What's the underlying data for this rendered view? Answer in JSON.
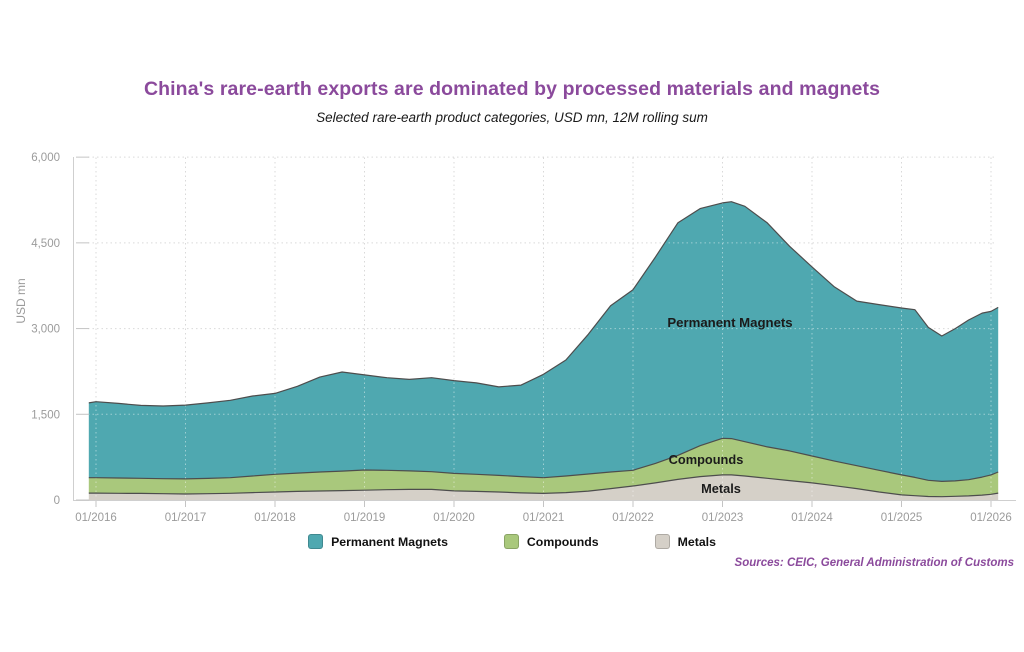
{
  "colors": {
    "title": "#8B4A9C",
    "sources": "#8B4A9C",
    "axis_text": "#9B9B9B",
    "axis_line": "#CFCFCF",
    "grid": "#D9D9D9",
    "area_stroke": "#4D4D4D"
  },
  "footer": {
    "sources": "Sources: CEIC, General Administration of Customs"
  },
  "chart_data": {
    "type": "area",
    "stacked": true,
    "title": "China's rare-earth exports are dominated by processed materials and magnets",
    "subtitle": "Selected rare-earth product categories, USD mn, 12M rolling sum",
    "xlabel": "",
    "ylabel": "USD mn",
    "ylim": [
      0,
      6000
    ],
    "grid": "dotted",
    "legend_position": "bottom",
    "y_ticks": [
      0,
      1500,
      3000,
      4500,
      6000
    ],
    "y_tick_labels": [
      "0",
      "1,500",
      "3,000",
      "4,500",
      "6,000"
    ],
    "x_ticks": [
      2016,
      2017,
      2018,
      2019,
      2020,
      2021,
      2022,
      2023,
      2024,
      2025,
      2026
    ],
    "x_tick_labels": [
      "01/2016",
      "01/2017",
      "01/2018",
      "01/2019",
      "01/2020",
      "01/2021",
      "01/2022",
      "01/2023",
      "01/2024",
      "01/2025",
      "01/2026"
    ],
    "x": [
      2015.92,
      2016.0,
      2016.25,
      2016.5,
      2016.75,
      2017.0,
      2017.25,
      2017.5,
      2017.75,
      2018.0,
      2018.25,
      2018.5,
      2018.75,
      2019.0,
      2019.25,
      2019.5,
      2019.75,
      2020.0,
      2020.25,
      2020.5,
      2020.75,
      2021.0,
      2021.25,
      2021.5,
      2021.75,
      2022.0,
      2022.25,
      2022.5,
      2022.75,
      2023.0,
      2023.1,
      2023.25,
      2023.5,
      2023.75,
      2024.0,
      2024.25,
      2024.5,
      2024.75,
      2025.0,
      2025.15,
      2025.3,
      2025.45,
      2025.6,
      2025.75,
      2025.9,
      2026.0,
      2026.08
    ],
    "series": [
      {
        "name": "Metals",
        "color": "#D5D0C8",
        "values": [
          120,
          120,
          118,
          115,
          110,
          105,
          110,
          118,
          130,
          140,
          150,
          158,
          165,
          172,
          180,
          185,
          185,
          160,
          150,
          140,
          125,
          115,
          130,
          155,
          200,
          245,
          300,
          360,
          410,
          440,
          440,
          420,
          380,
          340,
          300,
          250,
          200,
          140,
          90,
          75,
          62,
          58,
          65,
          72,
          85,
          100,
          120
        ]
      },
      {
        "name": "Compounds",
        "color": "#A9C87C",
        "values": [
          270,
          270,
          267,
          265,
          262,
          265,
          268,
          272,
          290,
          310,
          320,
          332,
          340,
          353,
          340,
          325,
          310,
          305,
          300,
          290,
          285,
          275,
          290,
          300,
          290,
          275,
          340,
          420,
          540,
          640,
          635,
          600,
          550,
          520,
          470,
          430,
          400,
          380,
          350,
          320,
          283,
          267,
          270,
          283,
          315,
          340,
          370
        ]
      },
      {
        "name": "Permanent Magnets",
        "color": "#4FA8B0",
        "values": [
          1310,
          1330,
          1305,
          1275,
          1273,
          1290,
          1322,
          1355,
          1400,
          1415,
          1520,
          1660,
          1735,
          1665,
          1620,
          1600,
          1645,
          1625,
          1600,
          1550,
          1600,
          1810,
          2030,
          2445,
          2910,
          3160,
          3610,
          4070,
          4150,
          4120,
          4145,
          4120,
          3920,
          3580,
          3310,
          3050,
          2880,
          2900,
          2920,
          2935,
          2675,
          2545,
          2665,
          2795,
          2870,
          2860,
          2880
        ]
      }
    ],
    "area_labels": [
      "Permanent Magnets",
      "Compounds",
      "Metals"
    ],
    "legend": [
      "Permanent Magnets",
      "Compounds",
      "Metals"
    ]
  }
}
